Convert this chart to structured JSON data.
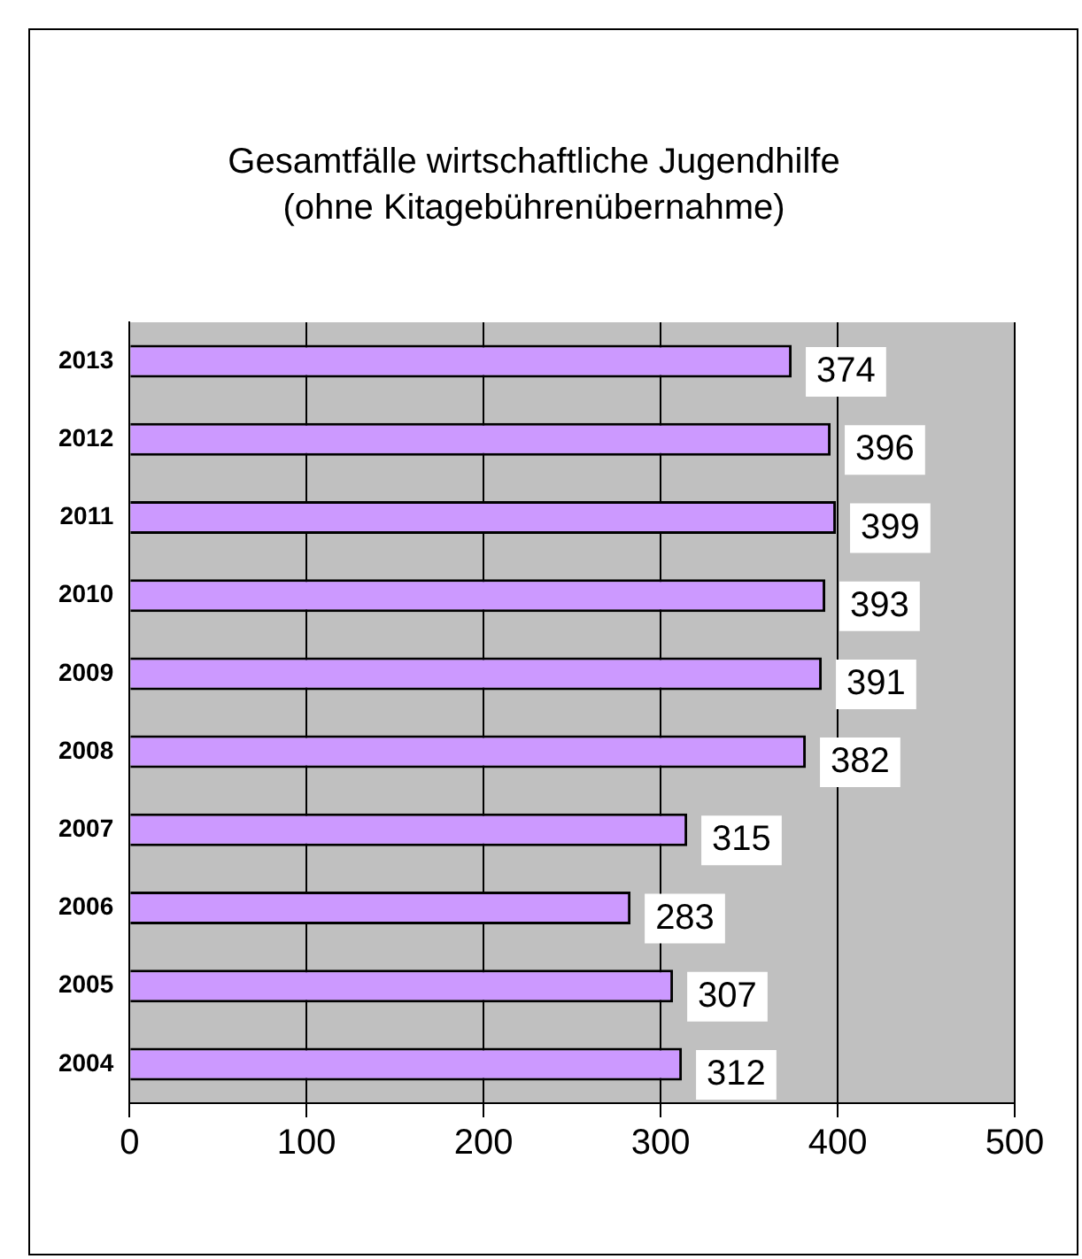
{
  "chart_data": {
    "type": "bar",
    "orientation": "horizontal",
    "title": "Gesamtfälle wirtschaftliche Jugendhilfe",
    "subtitle": "(ohne Kitagebührenübernahme)",
    "categories": [
      "2013",
      "2012",
      "2011",
      "2010",
      "2009",
      "2008",
      "2007",
      "2006",
      "2005",
      "2004"
    ],
    "values": [
      374,
      396,
      399,
      393,
      391,
      382,
      315,
      283,
      307,
      312
    ],
    "color": "#cc99ff",
    "xlim": [
      0,
      500
    ],
    "xticks": [
      0,
      100,
      200,
      300,
      400,
      500
    ],
    "grid": "x",
    "data_labels": true,
    "legend": false
  }
}
